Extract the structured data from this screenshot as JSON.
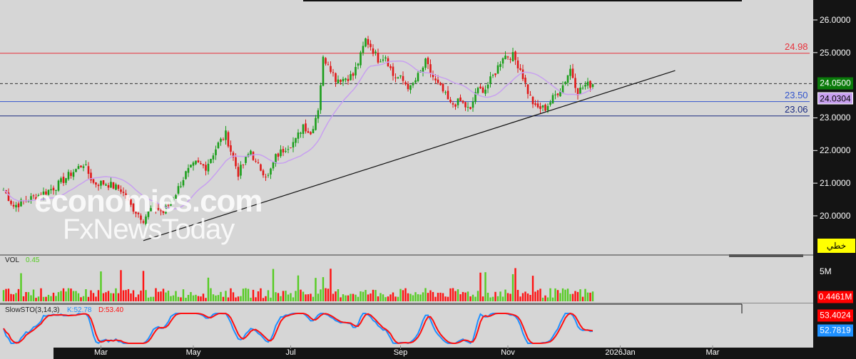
{
  "chart_data": {
    "type": "candlestick",
    "price_axis": {
      "ticks": [
        "26.0000",
        "25.0000",
        "23.0000",
        "22.0000",
        "21.0000",
        "20.0000"
      ],
      "tick_values": [
        26,
        25,
        23,
        22,
        21,
        20
      ],
      "range": [
        19.45,
        26.6
      ]
    },
    "time_axis": {
      "labels": [
        "Mar",
        "May",
        "Jul",
        "Sep",
        "Nov",
        "2026Jan",
        "Mar"
      ],
      "label_candle_index": [
        39,
        76,
        115,
        159,
        202,
        247,
        284
      ]
    },
    "close_keypoints": [
      [
        0,
        20.8
      ],
      [
        4,
        20.3
      ],
      [
        10,
        20.5
      ],
      [
        16,
        20.7
      ],
      [
        21,
        20.9
      ],
      [
        27,
        21.3
      ],
      [
        32,
        21.6
      ],
      [
        36,
        21.0
      ],
      [
        41,
        21.0
      ],
      [
        47,
        20.8
      ],
      [
        51,
        20.3
      ],
      [
        56,
        19.9
      ],
      [
        60,
        20.3
      ],
      [
        64,
        20.1
      ],
      [
        69,
        20.7
      ],
      [
        73,
        21.3
      ],
      [
        77,
        21.6
      ],
      [
        81,
        21.5
      ],
      [
        86,
        22.2
      ],
      [
        89,
        22.5
      ],
      [
        91,
        22.0
      ],
      [
        94,
        21.3
      ],
      [
        99,
        22.0
      ],
      [
        101,
        21.6
      ],
      [
        106,
        21.2
      ],
      [
        109,
        21.8
      ],
      [
        113,
        22.1
      ],
      [
        117,
        22.3
      ],
      [
        120,
        22.8
      ],
      [
        123,
        22.5
      ],
      [
        126,
        23.3
      ],
      [
        128,
        24.8
      ],
      [
        130,
        24.7
      ],
      [
        133,
        24.2
      ],
      [
        136,
        24.2
      ],
      [
        140,
        24.3
      ],
      [
        143,
        24.9
      ],
      [
        145,
        25.4
      ],
      [
        147,
        25.2
      ],
      [
        150,
        24.8
      ],
      [
        153,
        24.9
      ],
      [
        156,
        24.3
      ],
      [
        159,
        24.2
      ],
      [
        163,
        23.9
      ],
      [
        167,
        24.4
      ],
      [
        169,
        24.7
      ],
      [
        173,
        24.1
      ],
      [
        176,
        23.8
      ],
      [
        179,
        23.4
      ],
      [
        183,
        23.5
      ],
      [
        187,
        23.2
      ],
      [
        189,
        23.8
      ],
      [
        193,
        23.9
      ],
      [
        197,
        24.4
      ],
      [
        200,
        24.9
      ],
      [
        204,
        24.9
      ],
      [
        207,
        24.5
      ],
      [
        210,
        23.8
      ],
      [
        213,
        23.3
      ],
      [
        217,
        23.3
      ],
      [
        220,
        23.6
      ],
      [
        224,
        24.0
      ],
      [
        227,
        24.5
      ],
      [
        230,
        23.8
      ],
      [
        233,
        24.0
      ],
      [
        236,
        24.03
      ]
    ],
    "moving_average_period": 20,
    "trendline": [
      [
        56,
        19.24
      ],
      [
        269,
        24.45
      ]
    ],
    "levels": [
      {
        "label": "24.98",
        "value": 24.98,
        "color": "#e8323c"
      },
      {
        "label": "23.50",
        "value": 23.5,
        "color": "#3355cc"
      },
      {
        "label": "23.06",
        "value": 23.06,
        "color": "#1a2a80"
      }
    ],
    "last_price": {
      "label": "24.0500",
      "value": 24.05,
      "color": "#0a7a0a"
    },
    "ma_value": {
      "label": "24.0304",
      "color": "#c8a0f0"
    },
    "chart_type_button": "خطي",
    "volume": {
      "name": "VOL",
      "value": "0.45",
      "axis_tick": "5M",
      "last": "0.4461M"
    },
    "stochastic": {
      "name": "SlowSTO(3,14,3)",
      "k_label": "K:52.78",
      "d_label": "D:53.40",
      "d_value": "53.4024",
      "k_value": "52.7819",
      "k_color": "#1e90ff",
      "d_color": "#ff1010"
    }
  },
  "watermark": {
    "line1": "economies.com",
    "line2": "FxNewsToday"
  }
}
